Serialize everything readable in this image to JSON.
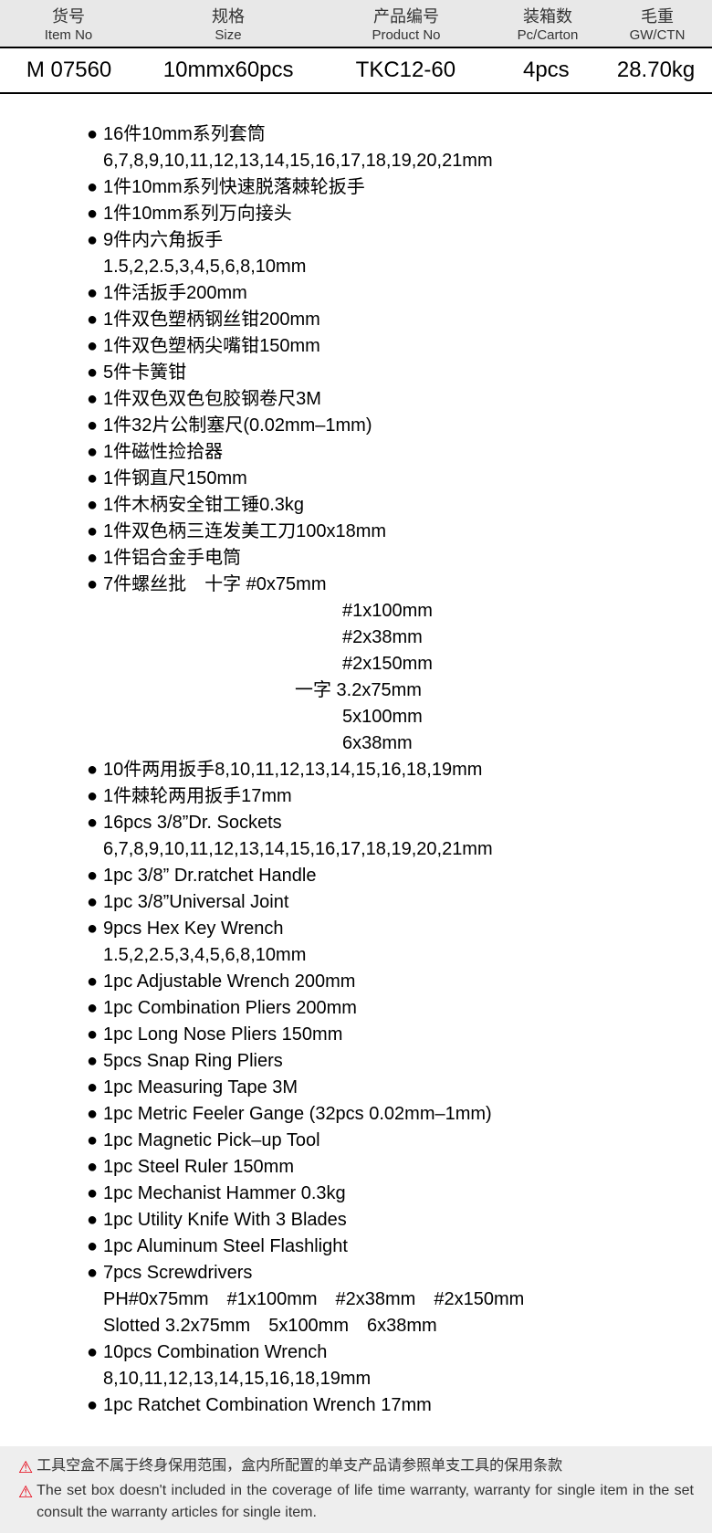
{
  "headers": [
    {
      "cn": "货号",
      "en": "Item No"
    },
    {
      "cn": "规格",
      "en": "Size"
    },
    {
      "cn": "产品编号",
      "en": "Product No"
    },
    {
      "cn": "装箱数",
      "en": "Pc/Carton"
    },
    {
      "cn": "毛重",
      "en": "GW/CTN"
    }
  ],
  "row": {
    "item_no": "M 07560",
    "size": "10mmx60pcs",
    "product_no": "TKC12-60",
    "carton": "4pcs",
    "gw": "28.70kg"
  },
  "lines": [
    {
      "b": true,
      "t": "16件10mm系列套筒"
    },
    {
      "b": false,
      "cls": "indent",
      "t": "6,7,8,9,10,11,12,13,14,15,16,17,18,19,20,21mm"
    },
    {
      "b": true,
      "t": "1件10mm系列快速脱落棘轮扳手"
    },
    {
      "b": true,
      "t": "1件10mm系列万向接头"
    },
    {
      "b": true,
      "t": "9件内六角扳手"
    },
    {
      "b": false,
      "cls": "indent",
      "t": "1.5,2,2.5,3,4,5,6,8,10mm"
    },
    {
      "b": true,
      "t": "1件活扳手200mm"
    },
    {
      "b": true,
      "t": "1件双色塑柄钢丝钳200mm"
    },
    {
      "b": true,
      "t": "1件双色塑柄尖嘴钳150mm"
    },
    {
      "b": true,
      "t": "5件卡簧钳"
    },
    {
      "b": true,
      "t": "1件双色双色包胶钢卷尺3M"
    },
    {
      "b": true,
      "t": "1件32片公制塞尺(0.02mm–1mm)"
    },
    {
      "b": true,
      "t": "1件磁性捡拾器"
    },
    {
      "b": true,
      "t": "1件钢直尺150mm"
    },
    {
      "b": true,
      "t": "1件木柄安全钳工锤0.3kg"
    },
    {
      "b": true,
      "t": "1件双色柄三连发美工刀100x18mm"
    },
    {
      "b": true,
      "t": "1件铝合金手电筒"
    },
    {
      "b": true,
      "t": "7件螺丝批 十字 #0x75mm"
    },
    {
      "b": false,
      "cls": "indent2",
      "t": "#1x100mm"
    },
    {
      "b": false,
      "cls": "indent2",
      "t": "#2x38mm"
    },
    {
      "b": false,
      "cls": "indent2",
      "t": "#2x150mm"
    },
    {
      "b": false,
      "cls": "indent3",
      "t": "一字 3.2x75mm"
    },
    {
      "b": false,
      "cls": "indent2",
      "t": "5x100mm"
    },
    {
      "b": false,
      "cls": "indent2",
      "t": "6x38mm"
    },
    {
      "b": true,
      "t": "10件两用扳手8,10,11,12,13,14,15,16,18,19mm"
    },
    {
      "b": true,
      "t": "1件棘轮两用扳手17mm"
    },
    {
      "b": true,
      "t": "16pcs 3/8”Dr. Sockets"
    },
    {
      "b": false,
      "cls": "indent",
      "t": "6,7,8,9,10,11,12,13,14,15,16,17,18,19,20,21mm"
    },
    {
      "b": true,
      "t": "1pc 3/8” Dr.ratchet Handle"
    },
    {
      "b": true,
      "t": "1pc 3/8”Universal Joint"
    },
    {
      "b": true,
      "t": "9pcs Hex Key Wrench"
    },
    {
      "b": false,
      "cls": "indent",
      "t": "1.5,2,2.5,3,4,5,6,8,10mm"
    },
    {
      "b": true,
      "t": "1pc Adjustable Wrench 200mm"
    },
    {
      "b": true,
      "t": "1pc Combination Pliers 200mm"
    },
    {
      "b": true,
      "t": "1pc Long Nose Pliers 150mm"
    },
    {
      "b": true,
      "t": "5pcs Snap Ring Pliers"
    },
    {
      "b": true,
      "t": "1pc Measuring Tape 3M"
    },
    {
      "b": true,
      "t": "1pc Metric Feeler Gange (32pcs 0.02mm–1mm)"
    },
    {
      "b": true,
      "t": "1pc Magnetic Pick–up Tool"
    },
    {
      "b": true,
      "t": "1pc Steel Ruler 150mm"
    },
    {
      "b": true,
      "t": "1pc Mechanist Hammer 0.3kg"
    },
    {
      "b": true,
      "t": "1pc Utility Knife With 3 Blades"
    },
    {
      "b": true,
      "t": "1pc Aluminum Steel Flashlight"
    },
    {
      "b": true,
      "t": "7pcs Screwdrivers"
    },
    {
      "b": false,
      "cls": "indent",
      "t": "PH#0x75mm #1x100mm #2x38mm #2x150mm"
    },
    {
      "b": false,
      "cls": "indent",
      "t": "Slotted 3.2x75mm 5x100mm 6x38mm"
    },
    {
      "b": true,
      "t": "10pcs Combination Wrench"
    },
    {
      "b": false,
      "cls": "indent",
      "t": "8,10,11,12,13,14,15,16,18,19mm"
    },
    {
      "b": true,
      "t": "1pc Ratchet Combination Wrench 17mm"
    }
  ],
  "footer": {
    "cn": "工具空盒不属于终身保用范围，盒内所配置的单支产品请参照单支工具的保用条款",
    "en": "The set box doesn't included in the coverage of life time warranty, warranty for single item in the set consult the warranty articles for single item."
  },
  "colors": {
    "header_bg": "#e8e8e8",
    "border": "#000000",
    "text": "#000000",
    "warn": "#e60012",
    "footer_bg": "#eeeeee"
  }
}
